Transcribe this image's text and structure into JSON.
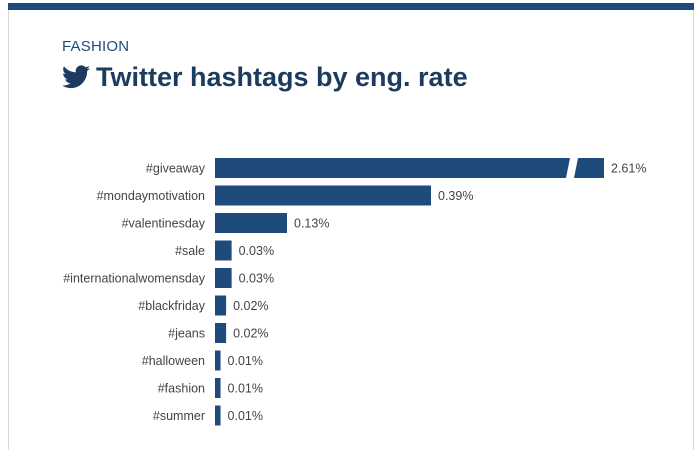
{
  "header": {
    "category": "FASHION",
    "title": "Twitter hashtags by eng. rate",
    "icon": "twitter-bird-icon"
  },
  "colors": {
    "bar": "#1f4a7c",
    "accent_bar": "#1f4a7c",
    "text": "#444444",
    "title": "#1d3b5e"
  },
  "chart_data": {
    "type": "bar",
    "orientation": "horizontal",
    "categories": [
      "#giveaway",
      "#mondaymotivation",
      "#valentinesday",
      "#sale",
      "#internationalwomensday",
      "#blackfriday",
      "#jeans",
      "#halloween",
      "#fashion",
      "#summer"
    ],
    "values": [
      2.61,
      0.39,
      0.13,
      0.03,
      0.03,
      0.02,
      0.02,
      0.01,
      0.01,
      0.01
    ],
    "value_labels": [
      "2.61%",
      "0.39%",
      "0.13%",
      "0.03%",
      "0.03%",
      "0.02%",
      "0.02%",
      "0.01%",
      "0.01%",
      "0.01%"
    ],
    "unit": "%",
    "axis_break": true,
    "grid": false,
    "legend": "none"
  }
}
